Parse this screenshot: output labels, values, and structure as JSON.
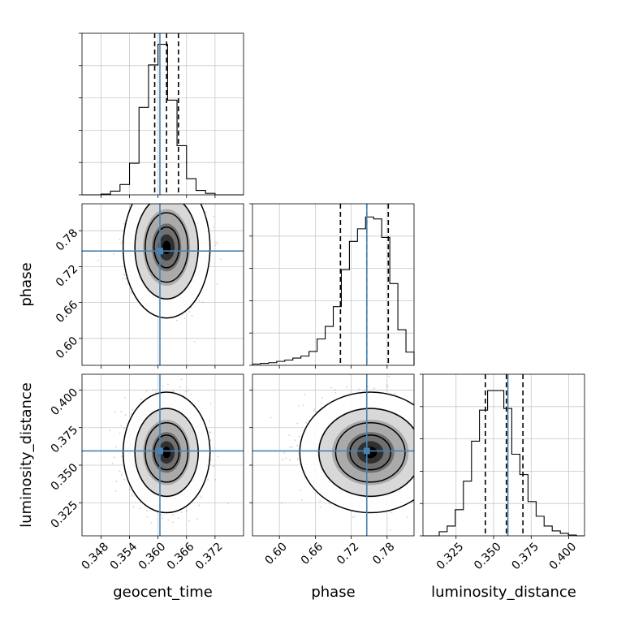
{
  "chart_data": {
    "type": "corner",
    "parameters": [
      "geocent_time",
      "phase",
      "luminosity_distance"
    ],
    "truths": [
      0.3604,
      0.746,
      0.3595
    ],
    "truth_color": "#4682b4",
    "grid": true,
    "panels": [
      {
        "id": "hist-geocent_time",
        "type": "histogram",
        "parameter": "geocent_time",
        "xlim": [
          0.344,
          0.378
        ],
        "quantiles": [
          0.3593,
          0.3618,
          0.3643
        ],
        "bins_x": [
          0.344,
          0.346,
          0.348,
          0.35,
          0.352,
          0.354,
          0.356,
          0.358,
          0.36,
          0.362,
          0.364,
          0.366,
          0.368,
          0.37,
          0.372,
          0.374,
          0.376,
          0.378
        ],
        "counts": [
          0,
          0,
          1,
          5,
          14,
          43,
          119,
          177,
          205,
          129,
          67,
          22,
          6,
          2,
          0,
          0,
          0
        ],
        "ymax": 220
      },
      {
        "id": "hist-phase",
        "type": "histogram",
        "parameter": "phase",
        "xlim": [
          0.555,
          0.825
        ],
        "quantiles": [
          0.702,
          0.746,
          0.782
        ],
        "bins_x": [
          0.555,
          0.5685,
          0.582,
          0.5955,
          0.609,
          0.6225,
          0.636,
          0.6495,
          0.663,
          0.6765,
          0.69,
          0.7035,
          0.717,
          0.7305,
          0.744,
          0.7575,
          0.771,
          0.7845,
          0.798,
          0.8115,
          0.825
        ],
        "counts": [
          2,
          3,
          4,
          6,
          8,
          11,
          14,
          21,
          40,
          59,
          89,
          145,
          188,
          207,
          225,
          222,
          194,
          124,
          54,
          20
        ],
        "ymax": 245
      },
      {
        "id": "hist-luminosity_distance",
        "type": "histogram",
        "parameter": "luminosity_distance",
        "xlim": [
          0.303,
          0.4105
        ],
        "quantiles": [
          0.3445,
          0.3585,
          0.3695
        ],
        "bins_x": [
          0.303,
          0.3084,
          0.3138,
          0.3191,
          0.3245,
          0.3299,
          0.3353,
          0.3406,
          0.346,
          0.3514,
          0.3568,
          0.3621,
          0.3675,
          0.3729,
          0.3783,
          0.3836,
          0.389,
          0.3944,
          0.3998,
          0.4051,
          0.4105
        ],
        "counts": [
          0,
          0,
          5,
          12,
          32,
          67,
          116,
          154,
          178,
          178,
          156,
          100,
          75,
          42,
          24,
          12,
          6,
          3,
          1,
          0
        ],
        "ymax": 198
      },
      {
        "id": "pair-geocent_time-phase",
        "type": "contour",
        "x": "geocent_time",
        "y": "phase",
        "xlim": [
          0.344,
          0.378
        ],
        "ylim": [
          0.555,
          0.825
        ],
        "center": [
          0.3618,
          0.752
        ],
        "spread": [
          0.0031,
          0.04
        ]
      },
      {
        "id": "pair-geocent_time-luminosity_distance",
        "type": "contour",
        "x": "geocent_time",
        "y": "luminosity_distance",
        "xlim": [
          0.344,
          0.378
        ],
        "ylim": [
          0.303,
          0.4105
        ],
        "center": [
          0.3618,
          0.3585
        ],
        "spread": [
          0.0031,
          0.0136
        ]
      },
      {
        "id": "pair-phase-luminosity_distance",
        "type": "contour",
        "x": "phase",
        "y": "luminosity_distance",
        "xlim": [
          0.555,
          0.825
        ],
        "ylim": [
          0.303,
          0.4105
        ],
        "center": [
          0.752,
          0.3585
        ],
        "spread": [
          0.04,
          0.0136
        ]
      }
    ],
    "axes": {
      "geocent_time": {
        "xlabel": "geocent_time",
        "ticks": [
          0.348,
          0.354,
          0.36,
          0.366,
          0.372
        ],
        "tick_labels": [
          "0.348",
          "0.354",
          "0.360",
          "0.366",
          "0.372"
        ]
      },
      "phase": {
        "label": "phase",
        "ticks": [
          0.6,
          0.66,
          0.72,
          0.78
        ],
        "tick_labels": [
          "0.60",
          "0.66",
          "0.72",
          "0.78"
        ]
      },
      "luminosity_distance": {
        "label": "luminosity_distance",
        "ticks": [
          0.325,
          0.35,
          0.375,
          0.4
        ],
        "tick_labels": [
          "0.325",
          "0.350",
          "0.375",
          "0.400"
        ]
      }
    }
  }
}
